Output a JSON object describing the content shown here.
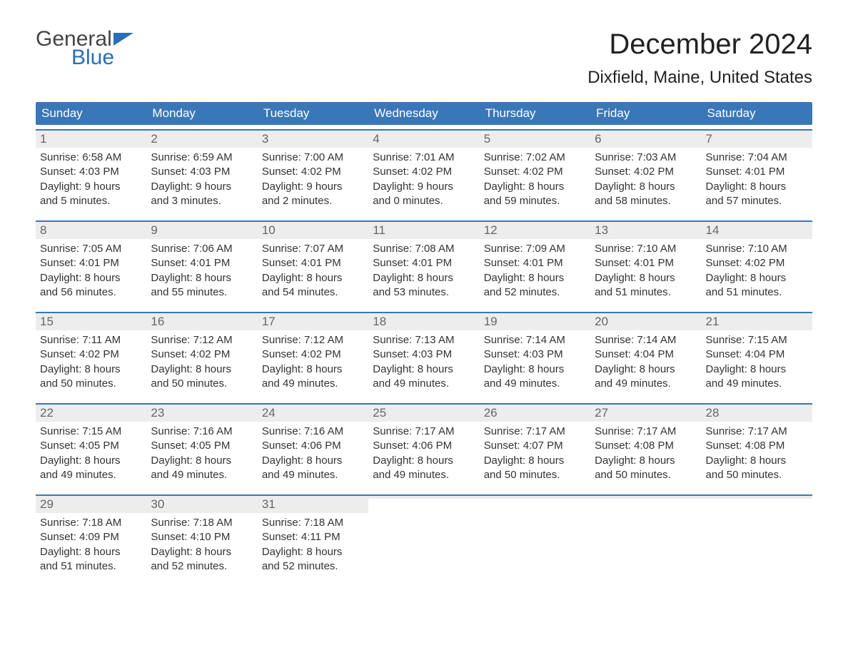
{
  "logo": {
    "text1": "General",
    "text2": "Blue",
    "flag_color": "#2a6db8"
  },
  "title": "December 2024",
  "location": "Dixfield, Maine, United States",
  "colors": {
    "header_bg": "#3a77b7",
    "header_text": "#ffffff",
    "week_border": "#3a77b7",
    "daynum_bg": "#ededed",
    "daynum_text": "#666666",
    "body_text": "#333333",
    "background": "#ffffff"
  },
  "day_names": [
    "Sunday",
    "Monday",
    "Tuesday",
    "Wednesday",
    "Thursday",
    "Friday",
    "Saturday"
  ],
  "weeks": [
    [
      {
        "n": "1",
        "sunrise": "6:58 AM",
        "sunset": "4:03 PM",
        "dl_h": "9",
        "dl_m": "5"
      },
      {
        "n": "2",
        "sunrise": "6:59 AM",
        "sunset": "4:03 PM",
        "dl_h": "9",
        "dl_m": "3"
      },
      {
        "n": "3",
        "sunrise": "7:00 AM",
        "sunset": "4:02 PM",
        "dl_h": "9",
        "dl_m": "2"
      },
      {
        "n": "4",
        "sunrise": "7:01 AM",
        "sunset": "4:02 PM",
        "dl_h": "9",
        "dl_m": "0"
      },
      {
        "n": "5",
        "sunrise": "7:02 AM",
        "sunset": "4:02 PM",
        "dl_h": "8",
        "dl_m": "59"
      },
      {
        "n": "6",
        "sunrise": "7:03 AM",
        "sunset": "4:02 PM",
        "dl_h": "8",
        "dl_m": "58"
      },
      {
        "n": "7",
        "sunrise": "7:04 AM",
        "sunset": "4:01 PM",
        "dl_h": "8",
        "dl_m": "57"
      }
    ],
    [
      {
        "n": "8",
        "sunrise": "7:05 AM",
        "sunset": "4:01 PM",
        "dl_h": "8",
        "dl_m": "56"
      },
      {
        "n": "9",
        "sunrise": "7:06 AM",
        "sunset": "4:01 PM",
        "dl_h": "8",
        "dl_m": "55"
      },
      {
        "n": "10",
        "sunrise": "7:07 AM",
        "sunset": "4:01 PM",
        "dl_h": "8",
        "dl_m": "54"
      },
      {
        "n": "11",
        "sunrise": "7:08 AM",
        "sunset": "4:01 PM",
        "dl_h": "8",
        "dl_m": "53"
      },
      {
        "n": "12",
        "sunrise": "7:09 AM",
        "sunset": "4:01 PM",
        "dl_h": "8",
        "dl_m": "52"
      },
      {
        "n": "13",
        "sunrise": "7:10 AM",
        "sunset": "4:01 PM",
        "dl_h": "8",
        "dl_m": "51"
      },
      {
        "n": "14",
        "sunrise": "7:10 AM",
        "sunset": "4:02 PM",
        "dl_h": "8",
        "dl_m": "51"
      }
    ],
    [
      {
        "n": "15",
        "sunrise": "7:11 AM",
        "sunset": "4:02 PM",
        "dl_h": "8",
        "dl_m": "50"
      },
      {
        "n": "16",
        "sunrise": "7:12 AM",
        "sunset": "4:02 PM",
        "dl_h": "8",
        "dl_m": "50"
      },
      {
        "n": "17",
        "sunrise": "7:12 AM",
        "sunset": "4:02 PM",
        "dl_h": "8",
        "dl_m": "49"
      },
      {
        "n": "18",
        "sunrise": "7:13 AM",
        "sunset": "4:03 PM",
        "dl_h": "8",
        "dl_m": "49"
      },
      {
        "n": "19",
        "sunrise": "7:14 AM",
        "sunset": "4:03 PM",
        "dl_h": "8",
        "dl_m": "49"
      },
      {
        "n": "20",
        "sunrise": "7:14 AM",
        "sunset": "4:04 PM",
        "dl_h": "8",
        "dl_m": "49"
      },
      {
        "n": "21",
        "sunrise": "7:15 AM",
        "sunset": "4:04 PM",
        "dl_h": "8",
        "dl_m": "49"
      }
    ],
    [
      {
        "n": "22",
        "sunrise": "7:15 AM",
        "sunset": "4:05 PM",
        "dl_h": "8",
        "dl_m": "49"
      },
      {
        "n": "23",
        "sunrise": "7:16 AM",
        "sunset": "4:05 PM",
        "dl_h": "8",
        "dl_m": "49"
      },
      {
        "n": "24",
        "sunrise": "7:16 AM",
        "sunset": "4:06 PM",
        "dl_h": "8",
        "dl_m": "49"
      },
      {
        "n": "25",
        "sunrise": "7:17 AM",
        "sunset": "4:06 PM",
        "dl_h": "8",
        "dl_m": "49"
      },
      {
        "n": "26",
        "sunrise": "7:17 AM",
        "sunset": "4:07 PM",
        "dl_h": "8",
        "dl_m": "50"
      },
      {
        "n": "27",
        "sunrise": "7:17 AM",
        "sunset": "4:08 PM",
        "dl_h": "8",
        "dl_m": "50"
      },
      {
        "n": "28",
        "sunrise": "7:17 AM",
        "sunset": "4:08 PM",
        "dl_h": "8",
        "dl_m": "50"
      }
    ],
    [
      {
        "n": "29",
        "sunrise": "7:18 AM",
        "sunset": "4:09 PM",
        "dl_h": "8",
        "dl_m": "51"
      },
      {
        "n": "30",
        "sunrise": "7:18 AM",
        "sunset": "4:10 PM",
        "dl_h": "8",
        "dl_m": "52"
      },
      {
        "n": "31",
        "sunrise": "7:18 AM",
        "sunset": "4:11 PM",
        "dl_h": "8",
        "dl_m": "52"
      },
      null,
      null,
      null,
      null
    ]
  ],
  "labels": {
    "sunrise": "Sunrise: ",
    "sunset": "Sunset: ",
    "daylight1": "Daylight: ",
    "daylight2": " hours",
    "daylight3": "and ",
    "daylight4": " minutes."
  }
}
